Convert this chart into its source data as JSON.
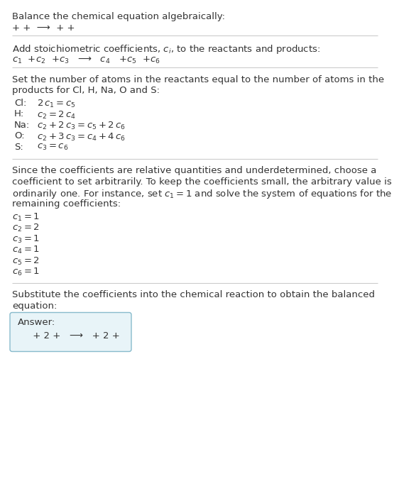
{
  "bg_color": "#ffffff",
  "text_color": "#333333",
  "line_color": "#cccccc",
  "answer_box_color": "#e8f4f8",
  "answer_box_border": "#88bbcc",
  "title": "Balance the chemical equation algebraically:",
  "section1_line1": "+ +  ⟶  + +",
  "section2_header": "Add stoichiometric coefficients, $c_i$, to the reactants and products:",
  "section2_line1": "$c_1$  +$c_2$  +$c_3$   ⟶   $c_4$   +$c_5$  +$c_6$",
  "section3_header_1": "Set the number of atoms in the reactants equal to the number of atoms in the",
  "section3_header_2": "products for Cl, H, Na, O and S:",
  "equations": [
    [
      "Cl:",
      "$2\\,c_1 = c_5$"
    ],
    [
      "H:",
      "$c_2 = 2\\,c_4$"
    ],
    [
      "Na:",
      "$c_2 + 2\\,c_3 = c_5 + 2\\,c_6$"
    ],
    [
      "O:",
      "$c_2 + 3\\,c_3 = c_4 + 4\\,c_6$"
    ],
    [
      "S:",
      "$c_3 = c_6$"
    ]
  ],
  "section4_header_1": "Since the coefficients are relative quantities and underdetermined, choose a",
  "section4_header_2": "coefficient to set arbitrarily. To keep the coefficients small, the arbitrary value is",
  "section4_header_3": "ordinarily one. For instance, set $c_1 = 1$ and solve the system of equations for the",
  "section4_header_4": "remaining coefficients:",
  "coefficients": [
    "$c_1 = 1$",
    "$c_2 = 2$",
    "$c_3 = 1$",
    "$c_4 = 1$",
    "$c_5 = 2$",
    "$c_6 = 1$"
  ],
  "section5_header_1": "Substitute the coefficients into the chemical reaction to obtain the balanced",
  "section5_header_2": "equation:",
  "answer_label": "Answer:",
  "answer_line": "     + 2 +   ⟶   + 2 +"
}
